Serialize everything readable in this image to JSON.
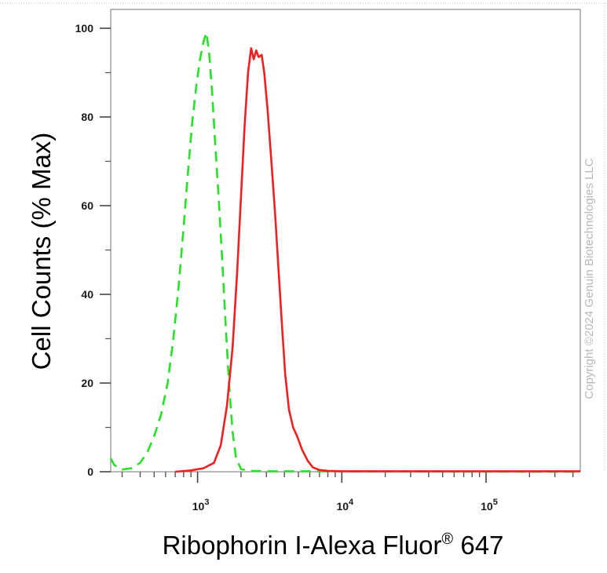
{
  "chart_data": {
    "type": "line",
    "xlabel": "Ribophorin I-Alexa Fluor",
    "xlabel_superscript": "®",
    "xlabel_suffix": " 647",
    "ylabel": "Cell Counts (% Max)",
    "x_scale": "log",
    "xlim": [
      250,
      450000
    ],
    "ylim": [
      0,
      100
    ],
    "x_ticks": [
      {
        "value": 1000,
        "base": "10",
        "exp": "3"
      },
      {
        "value": 10000,
        "base": "10",
        "exp": "4"
      },
      {
        "value": 100000,
        "base": "10",
        "exp": "5"
      }
    ],
    "y_ticks": [
      0,
      20,
      40,
      60,
      80,
      100
    ],
    "grid": false,
    "legend": "none",
    "watermark": "Copyright ©2024 Genuin Biotechnologies LLC",
    "series": [
      {
        "color": "#27e027",
        "style": "dashed",
        "points": [
          [
            250,
            3
          ],
          [
            265,
            1.5
          ],
          [
            300,
            0.5
          ],
          [
            350,
            0.8
          ],
          [
            400,
            2
          ],
          [
            450,
            4.5
          ],
          [
            500,
            8
          ],
          [
            560,
            13
          ],
          [
            620,
            20
          ],
          [
            680,
            30
          ],
          [
            740,
            42
          ],
          [
            800,
            55
          ],
          [
            860,
            68
          ],
          [
            920,
            79
          ],
          [
            980,
            87
          ],
          [
            1040,
            93
          ],
          [
            1100,
            97
          ],
          [
            1150,
            99
          ],
          [
            1200,
            95
          ],
          [
            1260,
            86
          ],
          [
            1320,
            75
          ],
          [
            1400,
            62
          ],
          [
            1480,
            48
          ],
          [
            1560,
            34
          ],
          [
            1650,
            20
          ],
          [
            1750,
            9
          ],
          [
            1850,
            3
          ],
          [
            2000,
            0.6
          ],
          [
            2300,
            0.2
          ],
          [
            3000,
            0.1
          ],
          [
            450000,
            0
          ]
        ]
      },
      {
        "color": "#ee2020",
        "style": "solid",
        "points": [
          [
            700,
            0
          ],
          [
            900,
            0.3
          ],
          [
            1100,
            0.8
          ],
          [
            1300,
            2
          ],
          [
            1450,
            6
          ],
          [
            1600,
            15
          ],
          [
            1750,
            28
          ],
          [
            1880,
            45
          ],
          [
            2000,
            62
          ],
          [
            2120,
            78
          ],
          [
            2240,
            90
          ],
          [
            2350,
            95.5
          ],
          [
            2450,
            93
          ],
          [
            2550,
            95
          ],
          [
            2650,
            93.5
          ],
          [
            2780,
            94
          ],
          [
            2900,
            90
          ],
          [
            3050,
            82
          ],
          [
            3250,
            70
          ],
          [
            3450,
            58
          ],
          [
            3650,
            45
          ],
          [
            3850,
            33
          ],
          [
            4050,
            22
          ],
          [
            4300,
            14
          ],
          [
            4600,
            10
          ],
          [
            4900,
            8
          ],
          [
            5300,
            5
          ],
          [
            5800,
            2.5
          ],
          [
            6300,
            1
          ],
          [
            7000,
            0.4
          ],
          [
            8000,
            0.2
          ],
          [
            10000,
            0.1
          ],
          [
            450000,
            0.1
          ]
        ]
      }
    ]
  }
}
